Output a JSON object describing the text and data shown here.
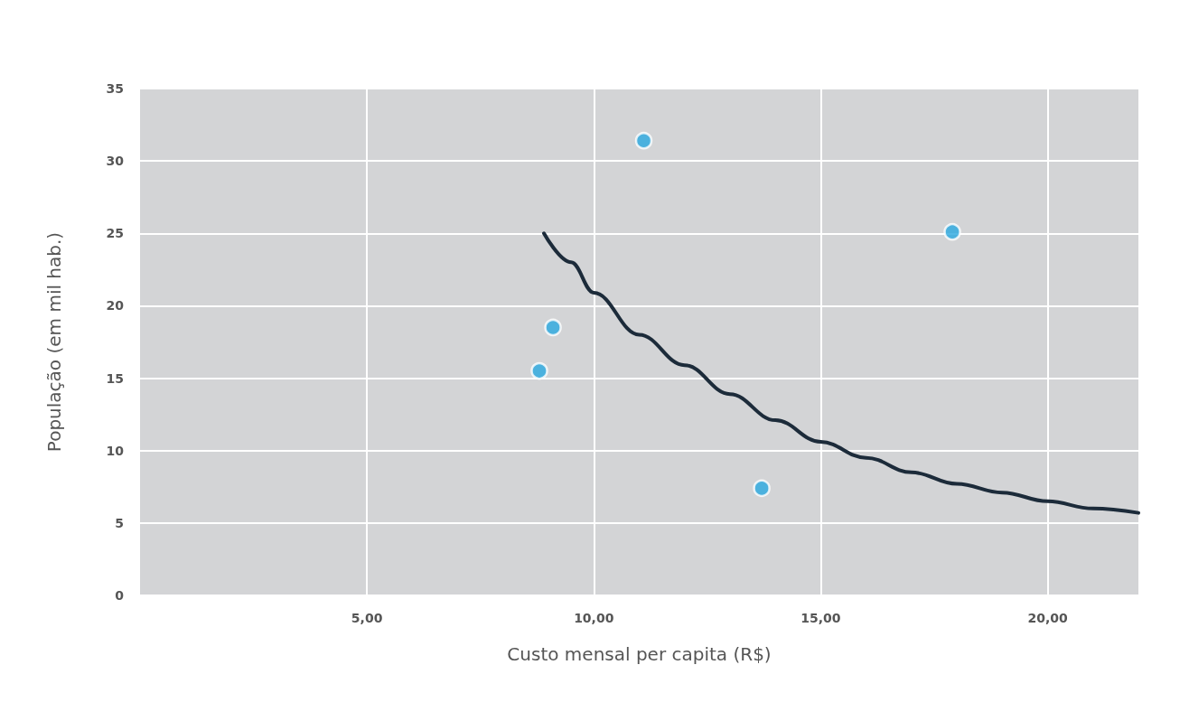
{
  "chart_data": {
    "type": "scatter",
    "xlabel": "Custo mensal per capita (R$)",
    "ylabel": "População (em mil hab.)",
    "xlim": [
      0,
      22
    ],
    "xticks": [
      {
        "value": 5,
        "label": "5,00"
      },
      {
        "value": 10,
        "label": "10,00"
      },
      {
        "value": 15,
        "label": "15,00"
      },
      {
        "value": 20,
        "label": "20,00"
      }
    ],
    "ylim": [
      0,
      35
    ],
    "yticks": [
      0,
      5,
      10,
      15,
      20,
      25,
      30,
      35
    ],
    "grid": true,
    "marker": "circle",
    "series": [
      {
        "color": "#29a8e0",
        "x": [
          11.1,
          17.9,
          9.1,
          8.8,
          13.7
        ],
        "values": [
          31.4,
          25.1,
          18.5,
          15.5,
          7.4
        ]
      },
      {
        "type": "line",
        "color": "#1c2b3a",
        "marker": "none",
        "line_style": "solid",
        "x": [
          8.9,
          9.5,
          10,
          11,
          12,
          13,
          14,
          15,
          16,
          17,
          18,
          19,
          20,
          21,
          22
        ],
        "values": [
          25,
          23,
          20.9,
          18,
          15.9,
          13.9,
          12.1,
          10.6,
          9.5,
          8.5,
          7.7,
          7.1,
          6.5,
          6.0,
          5.7
        ]
      }
    ]
  }
}
